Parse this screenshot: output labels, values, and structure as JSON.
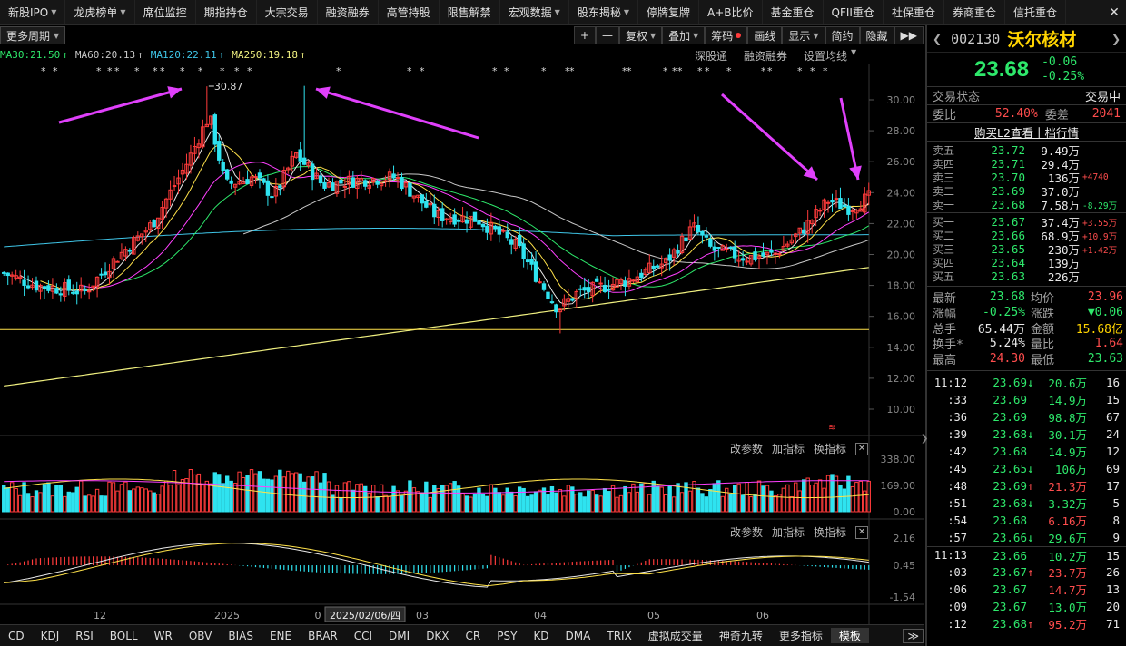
{
  "topnav": [
    "新股IPO",
    "龙虎榜单",
    "席位监控",
    "期指持仓",
    "大宗交易",
    "融资融券",
    "高管持股",
    "限售解禁",
    "宏观数据",
    "股东揭秘",
    "停牌复牌",
    "A+B比价",
    "基金重仓",
    "QFII重仓",
    "社保重仓",
    "券商重仓",
    "信托重仓"
  ],
  "topnav_dd": [
    true,
    true,
    false,
    false,
    false,
    false,
    false,
    false,
    true,
    true,
    false,
    false,
    false,
    false,
    false,
    false,
    false
  ],
  "chart_toolbar": {
    "period": "更多周期",
    "buttons": [
      "+",
      "—",
      "复权",
      "叠加",
      "筹码",
      "画线",
      "显示",
      "简约",
      "隐藏"
    ],
    "dd": [
      false,
      false,
      true,
      true,
      false,
      false,
      true,
      false,
      false
    ],
    "more": "▶▶"
  },
  "ma_legend": [
    {
      "text": "MA30:21.50",
      "color": "#2ee86b"
    },
    {
      "text": "MA60:20.13",
      "color": "#c8c8c8"
    },
    {
      "text": "MA120:22.11",
      "color": "#3fc6e8"
    },
    {
      "text": "MA250:19.18",
      "color": "#f0f080"
    }
  ],
  "ma_arrows": [
    "↑",
    "↑",
    "↑",
    "↑"
  ],
  "chart_links": [
    "深股通",
    "融资融券",
    "设置均线"
  ],
  "price_axis": [
    "30.00",
    "28.00",
    "26.00",
    "24.00",
    "22.00",
    "20.00",
    "18.00",
    "16.00",
    "14.00",
    "12.00",
    "10.00"
  ],
  "high_label": "30.87",
  "volume_panel": {
    "actions": [
      "改参数",
      "加指标",
      "换指标"
    ],
    "axis": [
      "338.00",
      "169.00",
      "0.00"
    ]
  },
  "macd_panel": {
    "actions": [
      "改参数",
      "加指标",
      "换指标"
    ],
    "axis": [
      "2.16",
      "0.45",
      "-1.54"
    ]
  },
  "x_axis": [
    "12",
    "2025",
    "0",
    "2025/02/06/四",
    "03",
    "04",
    "05",
    "06"
  ],
  "bottom_tabs": [
    "CD",
    "KDJ",
    "RSI",
    "BOLL",
    "WR",
    "OBV",
    "BIAS",
    "ENE",
    "BRAR",
    "CCI",
    "DMI",
    "DKX",
    "CR",
    "PSY",
    "KD",
    "DMA",
    "TRIX",
    "虚拟成交量",
    "神奇九转",
    "更多指标",
    "模板"
  ],
  "stock": {
    "code": "002130",
    "name": "沃尔核材",
    "price": "23.68",
    "change": "-0.06",
    "pct": "-0.25%"
  },
  "status": {
    "label": "交易状态",
    "value": "交易中"
  },
  "weibi": {
    "l1": "委比",
    "v1": "52.40%",
    "l2": "委差",
    "v2": "2041"
  },
  "l2_link": "购买L2查看十档行情",
  "asks": [
    {
      "label": "卖五",
      "price": "23.72",
      "vol": "9.49万",
      "chg": ""
    },
    {
      "label": "卖四",
      "price": "23.71",
      "vol": "29.4万",
      "chg": ""
    },
    {
      "label": "卖三",
      "price": "23.70",
      "vol": "136万",
      "chg": "+4740"
    },
    {
      "label": "卖二",
      "price": "23.69",
      "vol": "37.0万",
      "chg": ""
    },
    {
      "label": "卖一",
      "price": "23.68",
      "vol": "7.58万",
      "chg": "-8.29万"
    }
  ],
  "bids": [
    {
      "label": "买一",
      "price": "23.67",
      "vol": "37.4万",
      "chg": "+3.55万"
    },
    {
      "label": "买二",
      "price": "23.66",
      "vol": "68.9万",
      "chg": "+10.9万"
    },
    {
      "label": "买三",
      "price": "23.65",
      "vol": "230万",
      "chg": "+1.42万"
    },
    {
      "label": "买四",
      "price": "23.64",
      "vol": "139万",
      "chg": ""
    },
    {
      "label": "买五",
      "price": "23.63",
      "vol": "226万",
      "chg": ""
    }
  ],
  "stats": [
    {
      "l1": "最新",
      "v1": "23.68",
      "c1": "green",
      "l2": "均价",
      "v2": "23.96",
      "c2": "red"
    },
    {
      "l1": "涨幅",
      "v1": "-0.25%",
      "c1": "green",
      "l2": "涨跌",
      "v2": "▼0.06",
      "c2": "green"
    },
    {
      "l1": "总手",
      "v1": "65.44万",
      "c1": "white",
      "l2": "金额",
      "v2": "15.68亿",
      "c2": "yellow"
    },
    {
      "l1": "换手*",
      "v1": "5.24%",
      "c1": "white",
      "l2": "量比",
      "v2": "1.64",
      "c2": "red"
    },
    {
      "l1": "最高",
      "v1": "24.30",
      "c1": "red",
      "l2": "最低",
      "v2": "23.63",
      "c2": "green"
    }
  ],
  "ticks": [
    {
      "t": "11:12",
      "p": "23.69",
      "a": "↓",
      "v": "20.6万",
      "n": "16",
      "vc": "green"
    },
    {
      "t": ":33",
      "p": "23.69",
      "a": "",
      "v": "14.9万",
      "n": "15",
      "vc": "green"
    },
    {
      "t": ":36",
      "p": "23.69",
      "a": "",
      "v": "98.8万",
      "n": "67",
      "vc": "green"
    },
    {
      "t": ":39",
      "p": "23.68",
      "a": "↓",
      "v": "30.1万",
      "n": "24",
      "vc": "green"
    },
    {
      "t": ":42",
      "p": "23.68",
      "a": "",
      "v": "14.9万",
      "n": "12",
      "vc": "green"
    },
    {
      "t": ":45",
      "p": "23.65",
      "a": "↓",
      "v": "106万",
      "n": "69",
      "vc": "green"
    },
    {
      "t": ":48",
      "p": "23.69",
      "a": "↑",
      "v": "21.3万",
      "n": "17",
      "vc": "red"
    },
    {
      "t": ":51",
      "p": "23.68",
      "a": "↓",
      "v": "3.32万",
      "n": "5",
      "vc": "green"
    },
    {
      "t": ":54",
      "p": "23.68",
      "a": "",
      "v": "6.16万",
      "n": "8",
      "vc": "red"
    },
    {
      "t": ":57",
      "p": "23.66",
      "a": "↓",
      "v": "29.6万",
      "n": "9",
      "vc": "green"
    },
    {
      "t": "11:13",
      "p": "23.66",
      "a": "",
      "v": "10.2万",
      "n": "15",
      "vc": "green"
    },
    {
      "t": ":03",
      "p": "23.67",
      "a": "↑",
      "v": "23.7万",
      "n": "26",
      "vc": "red"
    },
    {
      "t": ":06",
      "p": "23.67",
      "a": "",
      "v": "14.7万",
      "n": "13",
      "vc": "red"
    },
    {
      "t": ":09",
      "p": "23.67",
      "a": "",
      "v": "13.0万",
      "n": "20",
      "vc": "green"
    },
    {
      "t": ":12",
      "p": "23.68",
      "a": "↑",
      "v": "95.2万",
      "n": "71",
      "vc": "red"
    }
  ],
  "colors": {
    "up": "#ff3b3b",
    "down": "#2fe3f0",
    "ma5": "#e8e8e8",
    "ma10": "#ffe24a",
    "ma20": "#ff40ff",
    "ma30": "#2ee86b",
    "ma60": "#c8c8c8",
    "ma120": "#3fc6e8",
    "ma250": "#f0f080",
    "arrow": "#e040fb"
  }
}
